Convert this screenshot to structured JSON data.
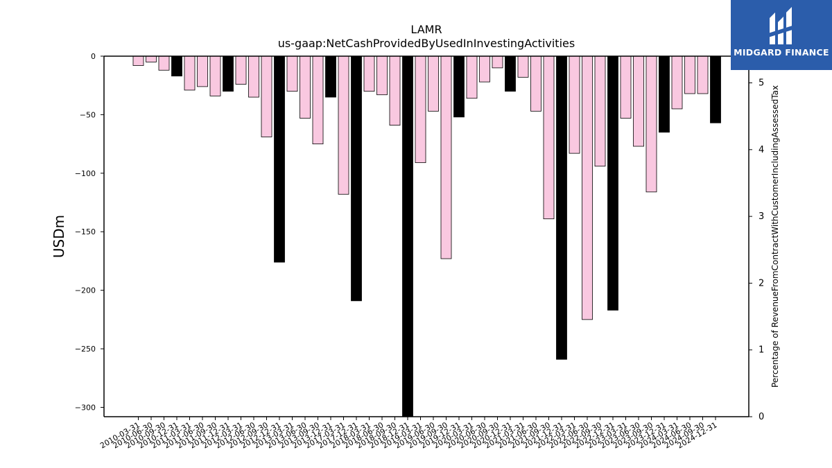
{
  "chart_data": {
    "type": "bar",
    "title": "LAMR",
    "subtitle": "us-gaap:NetCashProvidedByUsedInInvestingActivities",
    "ylabel": "USDm",
    "y2label": "Percentage of RevenueFromContractWithCustomerIncludingAssessedTax",
    "ylim": [
      -308,
      0
    ],
    "yticks": [
      0,
      -50,
      -100,
      -150,
      -200,
      -250,
      -300
    ],
    "y2lim": [
      0,
      5.4
    ],
    "y2ticks": [
      0,
      1,
      2,
      3,
      4,
      5
    ],
    "categories": [
      "2010-03-31",
      "2010-06-30",
      "2010-09-30",
      "2010-12-31",
      "2011-03-31",
      "2011-06-30",
      "2011-09-30",
      "2011-12-31",
      "2012-03-31",
      "2012-06-30",
      "2012-09-30",
      "2012-12-31",
      "2013-03-31",
      "2013-06-30",
      "2013-09-30",
      "2013-12-31",
      "2017-03-31",
      "2017-12-31",
      "2018-03-31",
      "2018-06-30",
      "2018-09-30",
      "2018-12-31",
      "2019-03-31",
      "2019-06-30",
      "2019-09-30",
      "2019-12-31",
      "2020-03-31",
      "2020-06-30",
      "2020-09-30",
      "2020-12-31",
      "2021-03-31",
      "2021-06-30",
      "2021-09-30",
      "2021-12-31",
      "2022-03-31",
      "2022-06-30",
      "2022-09-30",
      "2022-12-31",
      "2023-03-31",
      "2023-06-30",
      "2023-09-30",
      "2023-12-31",
      "2024-03-31",
      "2024-06-30",
      "2024-09-30",
      "2024-12-31"
    ],
    "values": [
      -8,
      -5,
      -12,
      -17,
      -29,
      -26,
      -34,
      -30,
      -24,
      -35,
      -69,
      -176,
      -30,
      -53,
      -75,
      -35,
      -118,
      -209,
      -30,
      -33,
      -59,
      -308,
      -91,
      -47,
      -173,
      -52,
      -36,
      -22,
      -10,
      -30,
      -18,
      -47,
      -139,
      -259,
      -83,
      -225,
      -94,
      -217,
      -53,
      -77,
      -116,
      -65,
      -45,
      -32,
      -32,
      -57
    ],
    "annual": [
      false,
      false,
      false,
      true,
      false,
      false,
      false,
      true,
      false,
      false,
      false,
      true,
      false,
      false,
      false,
      true,
      false,
      true,
      false,
      false,
      false,
      true,
      false,
      false,
      false,
      true,
      false,
      false,
      false,
      true,
      false,
      false,
      false,
      true,
      false,
      false,
      false,
      true,
      false,
      false,
      false,
      true,
      false,
      false,
      false,
      true
    ],
    "colors": {
      "quarter_fill": "#f9c8e0",
      "annual_fill": "#000000",
      "bar_edge": "#000000"
    }
  },
  "logo": {
    "text": "MIDGARD FINANCE",
    "background": "#2b5dab"
  }
}
